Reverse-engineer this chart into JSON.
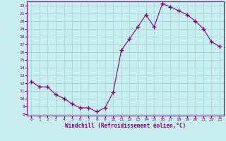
{
  "x": [
    0,
    1,
    2,
    3,
    4,
    5,
    6,
    7,
    8,
    9,
    10,
    11,
    12,
    13,
    14,
    15,
    16,
    17,
    18,
    19,
    20,
    21,
    22,
    23
  ],
  "y": [
    12.2,
    11.5,
    11.5,
    10.5,
    10.0,
    9.3,
    8.8,
    8.8,
    8.3,
    8.8,
    10.8,
    16.2,
    17.7,
    19.2,
    20.8,
    19.2,
    22.2,
    21.8,
    21.3,
    20.8,
    20.0,
    19.0,
    17.3,
    16.7
  ],
  "line_color": "#800080",
  "marker": "+",
  "marker_size": 4,
  "bg_color": "#c8eef0",
  "grid_color": "#a0d0d8",
  "xlim": [
    -0.5,
    23.5
  ],
  "ylim": [
    7.8,
    22.5
  ],
  "yticks": [
    8,
    9,
    10,
    11,
    12,
    13,
    14,
    15,
    16,
    17,
    18,
    19,
    20,
    21,
    22
  ],
  "xticks": [
    0,
    1,
    2,
    3,
    4,
    5,
    6,
    7,
    8,
    9,
    10,
    11,
    12,
    13,
    14,
    15,
    16,
    17,
    18,
    19,
    20,
    21,
    22,
    23
  ],
  "xlabel": "Windchill (Refroidissement éolien,°C)",
  "xlabel_color": "#800080",
  "tick_color": "#800080",
  "spine_color": "#800080"
}
